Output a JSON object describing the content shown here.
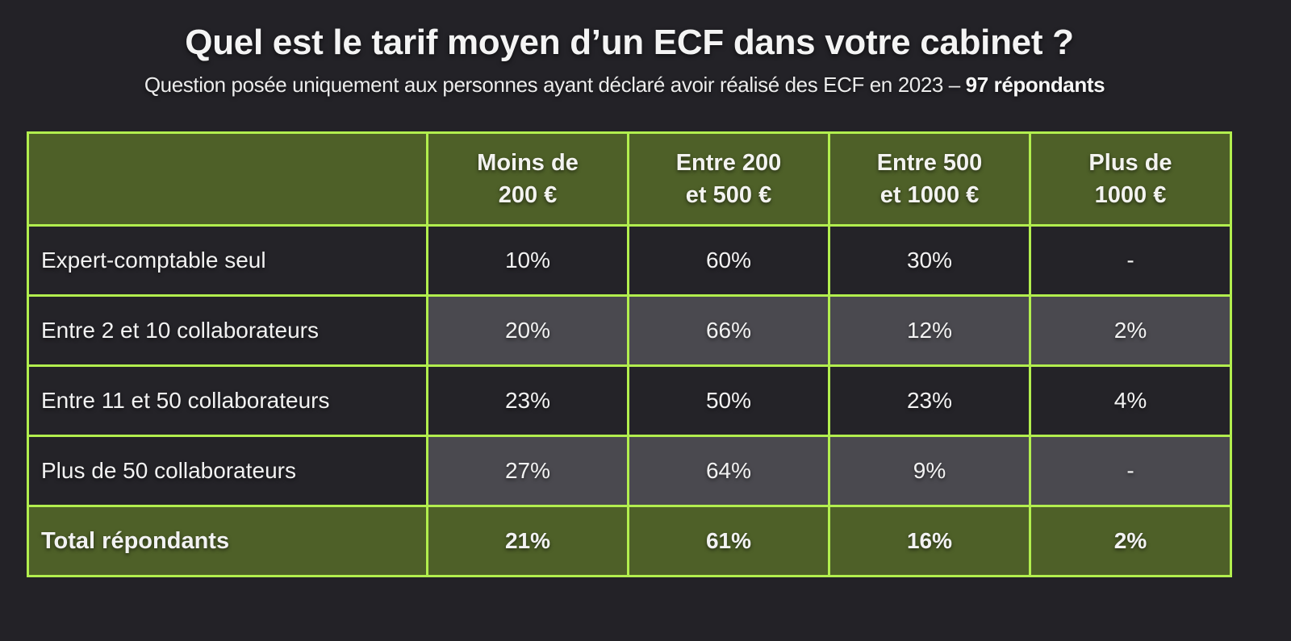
{
  "header": {
    "title": "Quel est le tarif moyen d’un ECF dans votre cabinet ?",
    "subtitle_prefix": "Question posée uniquement aux personnes ayant déclaré avoir réalisé des ECF en 2023 – ",
    "subtitle_bold": "97 répondants"
  },
  "colors": {
    "background": "#232227",
    "header_fill": "#4e6028",
    "grid_border": "#b2ee4e",
    "row_dark": "#242328",
    "row_light": "#4a494f",
    "text": "#f2f2f2"
  },
  "table": {
    "columns": [
      {
        "line1": "",
        "line2": ""
      },
      {
        "line1": "Moins de",
        "line2": "200 €"
      },
      {
        "line1": "Entre 200",
        "line2": "et 500 €"
      },
      {
        "line1": "Entre 500",
        "line2": "et 1000 €"
      },
      {
        "line1": "Plus de",
        "line2": "1000 €"
      }
    ],
    "rows": [
      {
        "label": "Expert-comptable seul",
        "values": [
          "10%",
          "60%",
          "30%",
          "-"
        ]
      },
      {
        "label": "Entre 2 et 10 collaborateurs",
        "values": [
          "20%",
          "66%",
          "12%",
          "2%"
        ]
      },
      {
        "label": "Entre 11 et 50 collaborateurs",
        "values": [
          "23%",
          "50%",
          "23%",
          "4%"
        ]
      },
      {
        "label": "Plus de 50 collaborateurs",
        "values": [
          "27%",
          "64%",
          "9%",
          "-"
        ]
      }
    ],
    "total": {
      "label": "Total répondants",
      "values": [
        "21%",
        "61%",
        "16%",
        "2%"
      ]
    }
  },
  "chart_data": {
    "type": "table",
    "title": "Quel est le tarif moyen d’un ECF dans votre cabinet ?",
    "subtitle": "Question posée uniquement aux personnes ayant déclaré avoir réalisé des ECF en 2023 – 97 répondants",
    "categories": [
      "Moins de 200 €",
      "Entre 200 et 500 €",
      "Entre 500 et 1000 €",
      "Plus de 1000 €"
    ],
    "series": [
      {
        "name": "Expert-comptable seul",
        "values": [
          10,
          60,
          30,
          null
        ]
      },
      {
        "name": "Entre 2 et 10 collaborateurs",
        "values": [
          20,
          66,
          12,
          2
        ]
      },
      {
        "name": "Entre 11 et 50 collaborateurs",
        "values": [
          23,
          50,
          23,
          4
        ]
      },
      {
        "name": "Plus de 50 collaborateurs",
        "values": [
          27,
          64,
          9,
          null
        ]
      },
      {
        "name": "Total répondants",
        "values": [
          21,
          61,
          16,
          2
        ]
      }
    ],
    "unit": "%",
    "respondents": 97
  }
}
